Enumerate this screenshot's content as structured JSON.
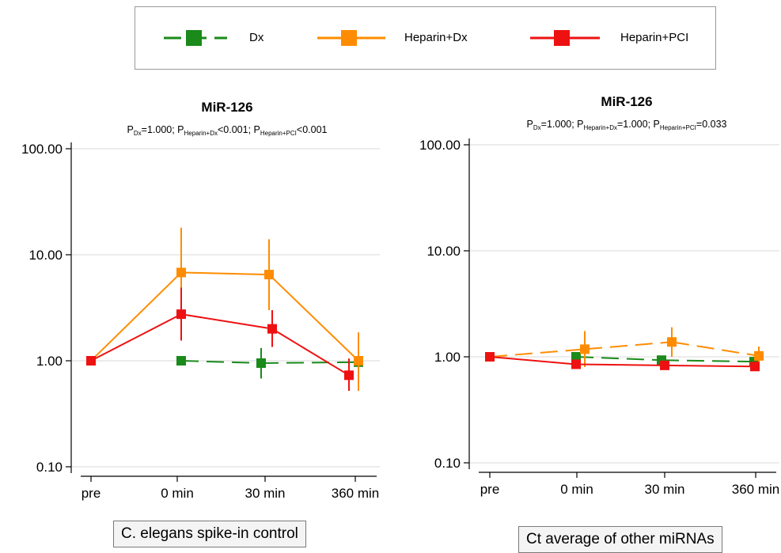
{
  "legend": [
    {
      "name": "Dx",
      "color": "#1a8a1a",
      "dash": true
    },
    {
      "name": "Heparin+Dx",
      "color": "#ff8c00",
      "dash": false
    },
    {
      "name": "Heparin+PCI",
      "color": "#ee1111",
      "dash": false
    }
  ],
  "captions": {
    "left": "C. elegans spike-in control",
    "right": "Ct average of other miRNAs"
  },
  "chart_data": [
    {
      "type": "line",
      "title": "MiR-126",
      "subtitle": [
        {
          "sub": "Dx",
          "val": "=1.000"
        },
        {
          "sub": "Heparin+Dx",
          "val": "<0.001"
        },
        {
          "sub": "Heparin+PCI",
          "val": "<0.001"
        }
      ],
      "log_y": true,
      "ylim": [
        0.1,
        100
      ],
      "y_ticks": [
        "100.00",
        "10.00",
        "1.00",
        "0.10"
      ],
      "y_tick_values": [
        100,
        10,
        1,
        0.1
      ],
      "categories": [
        "pre",
        "0 min",
        "30 min",
        "360 min"
      ],
      "series": [
        {
          "name": "Dx",
          "color": "#1a8a1a",
          "dashed": true,
          "values": [
            null,
            1.0,
            0.95,
            0.97
          ],
          "err_low": [
            null,
            null,
            0.68,
            0.68
          ],
          "err_high": [
            null,
            null,
            1.32,
            1.35
          ]
        },
        {
          "name": "Heparin+Dx",
          "color": "#ff8c00",
          "dashed": false,
          "values": [
            1.0,
            6.8,
            6.5,
            1.0
          ],
          "err_low": [
            null,
            2.6,
            3.0,
            0.52
          ],
          "err_high": [
            null,
            18.0,
            14.0,
            1.85
          ]
        },
        {
          "name": "Heparin+PCI",
          "color": "#ee1111",
          "dashed": false,
          "values": [
            1.0,
            2.75,
            2.0,
            0.73
          ],
          "err_low": [
            null,
            1.55,
            1.35,
            0.52
          ],
          "err_high": [
            null,
            4.9,
            3.0,
            1.05
          ]
        }
      ]
    },
    {
      "type": "line",
      "title": "MiR-126",
      "subtitle": [
        {
          "sub": "Dx",
          "val": "=1.000"
        },
        {
          "sub": "Heparin+Dx",
          "val": "=1.000"
        },
        {
          "sub": "Heparin+PCI",
          "val": "=0.033"
        }
      ],
      "log_y": true,
      "ylim": [
        0.1,
        100
      ],
      "y_ticks": [
        "100.00",
        "10.00",
        "1.00",
        "0.10"
      ],
      "y_tick_values": [
        100,
        10,
        1,
        0.1
      ],
      "categories": [
        "pre",
        "0 min",
        "30 min",
        "360 min"
      ],
      "series": [
        {
          "name": "Dx",
          "color": "#1a8a1a",
          "dashed": true,
          "values": [
            null,
            1.0,
            0.93,
            0.9
          ],
          "err_low": [
            null,
            0.9,
            0.85,
            0.76
          ],
          "err_high": [
            null,
            1.08,
            1.02,
            1.0
          ]
        },
        {
          "name": "Heparin+Dx",
          "color": "#ff8c00",
          "dashed": true,
          "values": [
            1.0,
            1.18,
            1.38,
            1.02
          ],
          "err_low": [
            null,
            0.8,
            1.0,
            0.86
          ],
          "err_high": [
            null,
            1.75,
            1.9,
            1.25
          ]
        },
        {
          "name": "Heparin+PCI",
          "color": "#ee1111",
          "dashed": false,
          "values": [
            1.0,
            0.85,
            0.83,
            0.81
          ],
          "err_low": [
            null,
            null,
            null,
            0.76
          ],
          "err_high": [
            null,
            null,
            null,
            0.89
          ]
        }
      ]
    }
  ]
}
